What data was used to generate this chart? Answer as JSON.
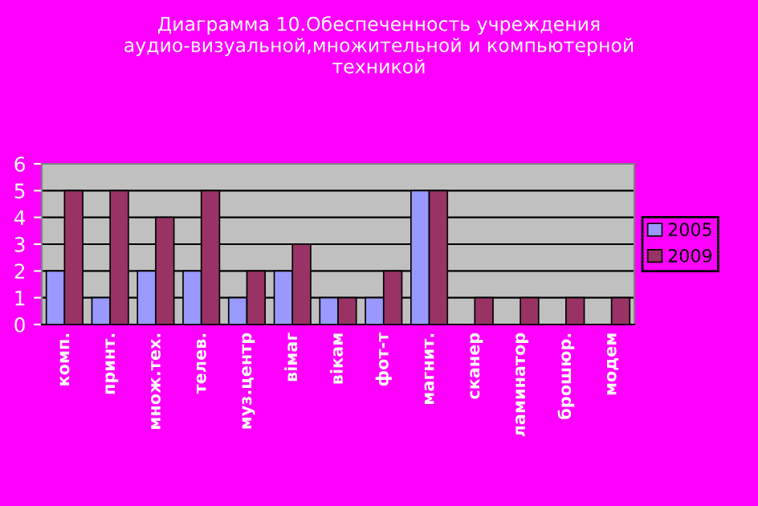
{
  "chart_data": {
    "type": "bar",
    "title": "Диаграмма 10.Обеспеченность учреждения аудио-визуальной,множительной и компьютерной техникой",
    "categories": [
      "комп.",
      "принт.",
      "множ.тех.",
      "телев.",
      "муз.центр",
      "вімаг",
      "вікам",
      "фот-т",
      "магнит.",
      "сканер",
      "ламинатор",
      "брошюр.",
      "модем"
    ],
    "series": [
      {
        "name": "2005",
        "color": "#9999ff",
        "values": [
          2,
          1,
          2,
          2,
          1,
          2,
          1,
          1,
          5,
          null,
          null,
          null,
          null
        ]
      },
      {
        "name": "2009",
        "color": "#993366",
        "values": [
          5,
          5,
          4,
          5,
          2,
          3,
          1,
          2,
          5,
          1,
          1,
          1,
          1
        ]
      }
    ],
    "ylim": [
      0,
      6
    ],
    "yticks": [
      0,
      1,
      2,
      3,
      4,
      5,
      6
    ],
    "grid": "y",
    "legend": "right"
  }
}
